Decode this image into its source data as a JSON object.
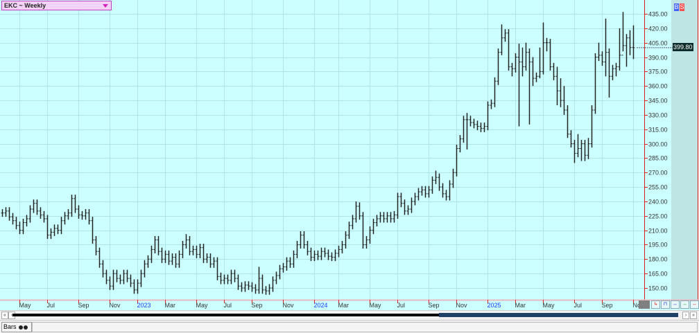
{
  "header": {
    "title": "EKC ~ Weekly",
    "buy_label": "B",
    "sell_label": "S",
    "last_price": "399.80"
  },
  "colors": {
    "plot_bg": "#ccffff",
    "grid": "#b0e4e4",
    "bars": "#222222",
    "axis": "#e02020",
    "year_label": "#1a3cff"
  },
  "footer": {
    "tab_label": "Bars"
  },
  "chart_data": {
    "type": "ohlc-bar",
    "interval": "weekly",
    "ylim": [
      140,
      440
    ],
    "y_ticks": [
      150,
      165,
      180,
      195,
      210,
      225,
      240,
      255,
      270,
      285,
      300,
      315,
      330,
      345,
      360,
      375,
      390,
      405,
      420,
      435
    ],
    "y_tick_labels": [
      "150.00",
      "165.00",
      "180.00",
      "195.00",
      "210.00",
      "225.00",
      "240.00",
      "255.00",
      "270.00",
      "285.00",
      "300.00",
      "315.00",
      "330.00",
      "345.00",
      "360.00",
      "375.00",
      "390.00",
      "405.00",
      "420.00",
      "435.00"
    ],
    "x_tick_labels": [
      {
        "label": "May",
        "bar": 5,
        "year": false
      },
      {
        "label": "Jul",
        "bar": 13,
        "year": false
      },
      {
        "label": "Sep",
        "bar": 22,
        "year": false
      },
      {
        "label": "Nov",
        "bar": 31,
        "year": false
      },
      {
        "label": "2023",
        "bar": 39,
        "year": true
      },
      {
        "label": "Mar",
        "bar": 47,
        "year": false
      },
      {
        "label": "May",
        "bar": 56,
        "year": false
      },
      {
        "label": "Jul",
        "bar": 64,
        "year": false
      },
      {
        "label": "Sep",
        "bar": 72,
        "year": false
      },
      {
        "label": "Nov",
        "bar": 81,
        "year": false
      },
      {
        "label": "2024",
        "bar": 90,
        "year": true
      },
      {
        "label": "Mar",
        "bar": 97,
        "year": false
      },
      {
        "label": "May",
        "bar": 106,
        "year": false
      },
      {
        "label": "Jul",
        "bar": 114,
        "year": false
      },
      {
        "label": "Sep",
        "bar": 123,
        "year": false
      },
      {
        "label": "Nov",
        "bar": 131,
        "year": false
      },
      {
        "label": "2025",
        "bar": 140,
        "year": true
      },
      {
        "label": "Mar",
        "bar": 148,
        "year": false
      },
      {
        "label": "May",
        "bar": 156,
        "year": false
      },
      {
        "label": "Jul",
        "bar": 165,
        "year": false
      },
      {
        "label": "Sep",
        "bar": 173,
        "year": false
      },
      {
        "label": "Nov",
        "bar": 182,
        "year": false
      }
    ],
    "bars": [
      [
        232,
        224,
        228
      ],
      [
        234,
        224,
        230
      ],
      [
        234,
        220,
        224
      ],
      [
        228,
        216,
        220
      ],
      [
        224,
        211,
        215
      ],
      [
        219,
        206,
        210
      ],
      [
        222,
        206,
        218
      ],
      [
        226,
        214,
        222
      ],
      [
        236,
        218,
        232
      ],
      [
        242,
        228,
        238
      ],
      [
        242,
        226,
        230
      ],
      [
        234,
        222,
        226
      ],
      [
        230,
        218,
        222
      ],
      [
        226,
        201,
        205
      ],
      [
        212,
        201,
        208
      ],
      [
        216,
        204,
        212
      ],
      [
        216,
        206,
        210
      ],
      [
        224,
        206,
        220
      ],
      [
        229,
        216,
        225
      ],
      [
        232,
        221,
        228
      ],
      [
        247,
        224,
        243
      ],
      [
        247,
        228,
        232
      ],
      [
        236,
        222,
        226
      ],
      [
        230,
        221,
        225
      ],
      [
        232,
        221,
        228
      ],
      [
        232,
        216,
        220
      ],
      [
        224,
        196,
        200
      ],
      [
        204,
        184,
        188
      ],
      [
        192,
        171,
        175
      ],
      [
        179,
        161,
        165
      ],
      [
        169,
        154,
        158
      ],
      [
        162,
        148,
        152
      ],
      [
        169,
        148,
        165
      ],
      [
        169,
        156,
        160
      ],
      [
        164,
        154,
        158
      ],
      [
        169,
        154,
        165
      ],
      [
        169,
        156,
        160
      ],
      [
        164,
        151,
        155
      ],
      [
        159,
        144,
        148
      ],
      [
        159,
        144,
        155
      ],
      [
        169,
        151,
        165
      ],
      [
        179,
        161,
        175
      ],
      [
        184,
        171,
        180
      ],
      [
        194,
        176,
        190
      ],
      [
        204,
        186,
        200
      ],
      [
        204,
        184,
        188
      ],
      [
        192,
        176,
        180
      ],
      [
        189,
        176,
        185
      ],
      [
        189,
        174,
        178
      ],
      [
        186,
        174,
        182
      ],
      [
        186,
        171,
        175
      ],
      [
        189,
        171,
        185
      ],
      [
        199,
        181,
        195
      ],
      [
        206,
        191,
        200
      ],
      [
        204,
        184,
        188
      ],
      [
        194,
        184,
        190
      ],
      [
        194,
        181,
        185
      ],
      [
        196,
        181,
        192
      ],
      [
        196,
        176,
        180
      ],
      [
        186,
        176,
        182
      ],
      [
        186,
        171,
        175
      ],
      [
        182,
        171,
        178
      ],
      [
        182,
        158,
        162
      ],
      [
        166,
        154,
        158
      ],
      [
        164,
        154,
        160
      ],
      [
        164,
        154,
        158
      ],
      [
        169,
        154,
        165
      ],
      [
        169,
        156,
        160
      ],
      [
        164,
        148,
        152
      ],
      [
        156,
        146,
        150
      ],
      [
        157,
        146,
        153
      ],
      [
        157,
        148,
        152
      ],
      [
        156,
        146,
        150
      ],
      [
        154,
        144,
        148
      ],
      [
        172,
        144,
        160
      ],
      [
        164,
        144,
        148
      ],
      [
        152,
        143,
        147
      ],
      [
        154,
        143,
        150
      ],
      [
        162,
        146,
        158
      ],
      [
        167,
        154,
        163
      ],
      [
        174,
        159,
        170
      ],
      [
        176,
        166,
        172
      ],
      [
        182,
        168,
        178
      ],
      [
        182,
        171,
        175
      ],
      [
        189,
        171,
        185
      ],
      [
        199,
        181,
        195
      ],
      [
        209,
        191,
        205
      ],
      [
        209,
        191,
        195
      ],
      [
        199,
        184,
        188
      ],
      [
        192,
        178,
        182
      ],
      [
        189,
        178,
        185
      ],
      [
        189,
        179,
        183
      ],
      [
        192,
        179,
        188
      ],
      [
        192,
        182,
        186
      ],
      [
        190,
        179,
        183
      ],
      [
        187,
        178,
        182
      ],
      [
        190,
        178,
        186
      ],
      [
        194,
        182,
        190
      ],
      [
        199,
        186,
        195
      ],
      [
        209,
        191,
        205
      ],
      [
        219,
        201,
        215
      ],
      [
        226,
        211,
        222
      ],
      [
        240,
        218,
        235
      ],
      [
        239,
        221,
        225
      ],
      [
        229,
        191,
        195
      ],
      [
        204,
        191,
        200
      ],
      [
        214,
        196,
        210
      ],
      [
        222,
        206,
        218
      ],
      [
        226,
        214,
        222
      ],
      [
        229,
        218,
        225
      ],
      [
        229,
        218,
        222
      ],
      [
        229,
        218,
        225
      ],
      [
        229,
        218,
        222
      ],
      [
        230,
        218,
        226
      ],
      [
        249,
        222,
        245
      ],
      [
        249,
        234,
        238
      ],
      [
        242,
        226,
        230
      ],
      [
        236,
        226,
        232
      ],
      [
        244,
        228,
        240
      ],
      [
        249,
        236,
        245
      ],
      [
        254,
        241,
        250
      ],
      [
        256,
        246,
        252
      ],
      [
        256,
        244,
        248
      ],
      [
        256,
        244,
        252
      ],
      [
        266,
        248,
        262
      ],
      [
        272,
        258,
        265
      ],
      [
        269,
        251,
        255
      ],
      [
        259,
        244,
        248
      ],
      [
        252,
        241,
        245
      ],
      [
        262,
        241,
        258
      ],
      [
        274,
        254,
        270
      ],
      [
        299,
        266,
        295
      ],
      [
        309,
        291,
        305
      ],
      [
        329,
        301,
        325
      ],
      [
        332,
        294,
        325
      ],
      [
        329,
        318,
        322
      ],
      [
        326,
        316,
        320
      ],
      [
        324,
        314,
        318
      ],
      [
        322,
        312,
        316
      ],
      [
        322,
        312,
        318
      ],
      [
        344,
        314,
        340
      ],
      [
        346,
        336,
        342
      ],
      [
        369,
        338,
        365
      ],
      [
        399,
        361,
        395
      ],
      [
        424,
        392,
        410
      ],
      [
        419,
        406,
        415
      ],
      [
        419,
        376,
        380
      ],
      [
        384,
        370,
        378
      ],
      [
        394,
        374,
        390
      ],
      [
        404,
        318,
        385
      ],
      [
        400,
        370,
        380
      ],
      [
        405,
        376,
        395
      ],
      [
        399,
        320,
        385
      ],
      [
        390,
        360,
        368
      ],
      [
        374,
        364,
        370
      ],
      [
        400,
        368,
        375
      ],
      [
        426,
        372,
        405
      ],
      [
        410,
        396,
        405
      ],
      [
        409,
        376,
        380
      ],
      [
        384,
        366,
        370
      ],
      [
        380,
        340,
        355
      ],
      [
        368,
        338,
        345
      ],
      [
        360,
        330,
        335
      ],
      [
        340,
        306,
        310
      ],
      [
        314,
        296,
        300
      ],
      [
        304,
        280,
        290
      ],
      [
        310,
        286,
        295
      ],
      [
        304,
        282,
        300
      ],
      [
        304,
        282,
        288
      ],
      [
        306,
        284,
        300
      ],
      [
        340,
        296,
        335
      ],
      [
        394,
        331,
        390
      ],
      [
        405,
        386,
        392
      ],
      [
        396,
        381,
        385
      ],
      [
        430,
        370,
        395
      ],
      [
        399,
        348,
        370
      ],
      [
        382,
        366,
        378
      ],
      [
        384,
        370,
        380
      ],
      [
        420,
        376,
        392
      ],
      [
        437,
        396,
        402
      ],
      [
        414,
        380,
        410
      ],
      [
        418,
        392,
        400
      ],
      [
        423,
        388,
        399.8
      ]
    ]
  }
}
